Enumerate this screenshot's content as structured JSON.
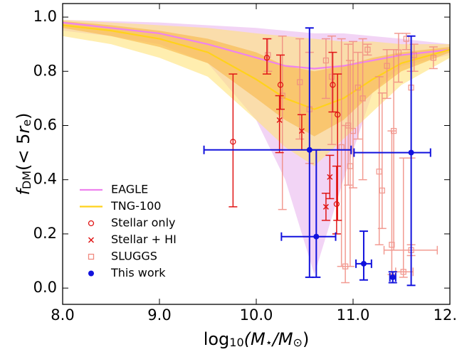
{
  "chart_data": {
    "type": "errorbar",
    "xlabel": [
      "log",
      "10",
      "(M",
      "⋆",
      "/M",
      "⊙",
      ")"
    ],
    "ylabel": [
      "f",
      "DM",
      "(< 5",
      "r",
      "e",
      ")"
    ],
    "xlim": [
      8.0,
      12.0
    ],
    "ylim": [
      -0.06,
      1.05
    ],
    "xticks": [
      {
        "value": 8,
        "label": "8.0"
      },
      {
        "value": 9,
        "label": "9.0"
      },
      {
        "value": 10,
        "label": "10.0"
      },
      {
        "value": 11,
        "label": "11.0"
      },
      {
        "value": 12,
        "label": "12.0"
      }
    ],
    "yticks": [
      {
        "value": 0,
        "label": "0.0"
      },
      0.2,
      0.4,
      0.6,
      0.8,
      {
        "value": 1,
        "label": "1.0"
      }
    ],
    "legend": "lower left",
    "bands": [
      {
        "name": "EAGLE",
        "color": "#ee82ee",
        "fill": "#e9b8ef",
        "x": [
          8.0,
          8.5,
          9.0,
          9.5,
          10.0,
          10.3,
          10.6,
          10.9,
          11.2,
          11.5,
          12.0
        ],
        "median": [
          0.98,
          0.96,
          0.94,
          0.9,
          0.85,
          0.82,
          0.81,
          0.82,
          0.84,
          0.86,
          0.88
        ],
        "low": [
          0.95,
          0.93,
          0.9,
          0.83,
          0.62,
          0.4,
          0.05,
          0.4,
          0.72,
          0.82,
          0.86
        ],
        "high": [
          0.99,
          0.985,
          0.98,
          0.97,
          0.96,
          0.95,
          0.94,
          0.94,
          0.93,
          0.92,
          0.9
        ]
      },
      {
        "name": "TNG-100",
        "color": "#ffd21a",
        "fill": "#ffe27a",
        "fill_inner": "#f7b23e",
        "x": [
          8.0,
          8.5,
          9.0,
          9.5,
          10.0,
          10.3,
          10.6,
          10.9,
          11.2,
          11.5,
          12.0
        ],
        "median": [
          0.97,
          0.95,
          0.92,
          0.87,
          0.77,
          0.7,
          0.66,
          0.7,
          0.77,
          0.83,
          0.88
        ],
        "low": [
          0.93,
          0.9,
          0.85,
          0.78,
          0.62,
          0.52,
          0.45,
          0.55,
          0.65,
          0.75,
          0.85
        ],
        "high": [
          0.99,
          0.98,
          0.97,
          0.96,
          0.94,
          0.93,
          0.92,
          0.91,
          0.91,
          0.9,
          0.9
        ],
        "low_inner": [
          0.96,
          0.93,
          0.89,
          0.83,
          0.7,
          0.62,
          0.56,
          0.62,
          0.72,
          0.8,
          0.87
        ],
        "high_inner": [
          0.985,
          0.97,
          0.95,
          0.92,
          0.87,
          0.82,
          0.8,
          0.82,
          0.85,
          0.87,
          0.89
        ]
      }
    ],
    "series": [
      {
        "name": "SLUGGS",
        "color": "#f08a80",
        "marker": "square",
        "x": [
          10.12,
          10.27,
          10.45,
          10.55,
          10.72,
          10.78,
          10.88,
          10.92,
          10.95,
          10.97,
          11.0,
          11.05,
          11.1,
          11.15,
          11.27,
          11.3,
          11.35,
          11.4,
          11.42,
          11.47,
          11.52,
          11.55,
          11.6,
          11.63,
          11.83,
          11.6
        ],
        "y": [
          0.86,
          0.71,
          0.76,
          0.66,
          0.84,
          0.78,
          0.52,
          0.08,
          0.6,
          0.45,
          0.58,
          0.74,
          0.7,
          0.88,
          0.43,
          0.36,
          0.82,
          0.16,
          0.58,
          0.87,
          0.06,
          0.92,
          0.74,
          0.86,
          0.85,
          0.14
        ],
        "ylo": [
          0.8,
          0.29,
          0.55,
          0.46,
          0.7,
          0.53,
          0.08,
          0.02,
          0.38,
          0.08,
          0.37,
          0.55,
          0.4,
          0.86,
          0.16,
          0.22,
          0.7,
          0.05,
          0.14,
          0.76,
          0.04,
          0.88,
          0.48,
          0.8,
          0.81,
          0.12
        ],
        "yhi": [
          0.92,
          0.93,
          0.92,
          0.87,
          0.92,
          0.93,
          0.92,
          0.6,
          0.9,
          0.84,
          0.91,
          0.87,
          0.92,
          0.9,
          0.78,
          0.72,
          0.88,
          0.58,
          0.88,
          0.94,
          0.48,
          0.94,
          0.8,
          0.9,
          0.89,
          0.16
        ],
        "xlo": [
          null,
          null,
          null,
          null,
          null,
          null,
          null,
          null,
          null,
          null,
          null,
          null,
          null,
          null,
          null,
          null,
          null,
          null,
          null,
          null,
          11.44,
          null,
          null,
          null,
          null,
          11.32
        ],
        "xhi": [
          null,
          null,
          null,
          null,
          null,
          null,
          null,
          null,
          null,
          null,
          null,
          null,
          null,
          null,
          null,
          null,
          null,
          null,
          null,
          null,
          11.62,
          null,
          null,
          null,
          null,
          11.87
        ]
      },
      {
        "name": "Stellar only",
        "color": "#e01515",
        "marker": "circle",
        "x": [
          9.76,
          10.11,
          10.25,
          10.79,
          10.84,
          10.83
        ],
        "y": [
          0.54,
          0.85,
          0.75,
          0.75,
          0.64,
          0.31
        ],
        "ylo": [
          0.3,
          0.79,
          0.66,
          0.65,
          0.25,
          0.2
        ],
        "yhi": [
          0.79,
          0.92,
          0.86,
          0.87,
          0.79,
          0.45
        ],
        "xlo": [
          null,
          null,
          null,
          null,
          null,
          null
        ],
        "xhi": [
          null,
          null,
          null,
          null,
          null,
          null
        ]
      },
      {
        "name": "Stellar + HI",
        "color": "#e01515",
        "marker": "cross",
        "x": [
          10.24,
          10.47,
          10.76,
          10.72
        ],
        "y": [
          0.62,
          0.58,
          0.41,
          0.3
        ],
        "ylo": [
          0.5,
          0.51,
          0.33,
          0.25
        ],
        "yhi": [
          0.71,
          0.64,
          0.49,
          0.35
        ],
        "xlo": [
          null,
          null,
          null,
          null
        ],
        "xhi": [
          null,
          null,
          null,
          null
        ]
      },
      {
        "name": "This work",
        "color": "#1212dd",
        "marker": "dot",
        "x": [
          10.55,
          10.62,
          11.11,
          11.41,
          11.6
        ],
        "y": [
          0.51,
          0.19,
          0.09,
          0.04,
          0.5
        ],
        "ylo": [
          0.04,
          0.04,
          0.03,
          0.02,
          0.01
        ],
        "yhi": [
          0.96,
          0.51,
          0.21,
          0.06,
          0.93
        ],
        "xlo": [
          9.46,
          10.26,
          11.03,
          11.38,
          11.01
        ],
        "xhi": [
          10.98,
          10.82,
          11.19,
          11.44,
          11.8
        ]
      }
    ]
  }
}
